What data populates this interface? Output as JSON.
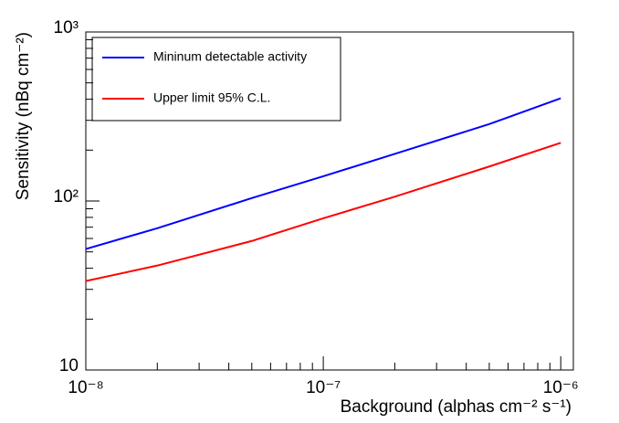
{
  "chart_data": {
    "type": "line",
    "x_label": "Background (alphas cm⁻² s⁻¹)",
    "y_label": "Sensitivity (nBq cm⁻²)",
    "x": [
      1e-08,
      2e-08,
      5e-08,
      1e-07,
      2e-07,
      5e-07,
      1e-06
    ],
    "series": [
      {
        "name": "Mininum detectable activity",
        "color": "#0000ff",
        "values": [
          52,
          69,
          104,
          140,
          190,
          285,
          405
        ]
      },
      {
        "name": "Upper limit 95% C.L.",
        "color": "#ff0000",
        "values": [
          33.6,
          41.5,
          58,
          79,
          106,
          160,
          221
        ]
      }
    ],
    "xlim": [
      1e-08,
      1.13e-06
    ],
    "ylim": [
      10,
      1000
    ],
    "xticks": [
      {
        "value": 1e-08,
        "label": "10⁻⁸"
      },
      {
        "value": 1e-07,
        "label": "10⁻⁷"
      },
      {
        "value": 1e-06,
        "label": "10⁻⁶"
      }
    ],
    "yticks": [
      10,
      {
        "value": 100,
        "label": "10²"
      },
      {
        "value": 1000,
        "label": "10³"
      }
    ],
    "xlog": true,
    "ylog": true,
    "legend": "upper-left"
  }
}
